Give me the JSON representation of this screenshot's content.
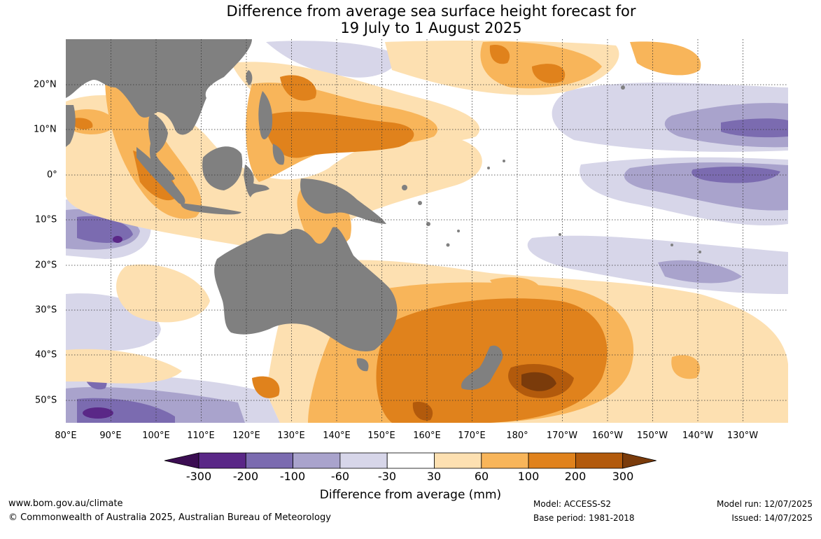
{
  "title_line1": "Difference from average sea surface height forecast for",
  "title_line2": "19 July to 1 August 2025",
  "lon_labels": [
    "80°E",
    "90°E",
    "100°E",
    "110°E",
    "120°E",
    "130°E",
    "140°E",
    "150°E",
    "160°E",
    "170°E",
    "180°",
    "170°W",
    "160°W",
    "150°W",
    "140°W",
    "130°W"
  ],
  "lat_labels": [
    "20°N",
    "10°N",
    "0°",
    "10°S",
    "20°S",
    "30°S",
    "40°S",
    "50°S"
  ],
  "colorbar": {
    "ticks": [
      "-300",
      "-200",
      "-100",
      "-60",
      "-30",
      "30",
      "60",
      "100",
      "200",
      "300"
    ],
    "colors": [
      "#3b0d52",
      "#5a2787",
      "#7b6bb0",
      "#a9a3cc",
      "#d7d6e9",
      "#ffffff",
      "#fde0b1",
      "#f8b55a",
      "#e0821c",
      "#b25a0c",
      "#7a3b0b"
    ],
    "title": "Difference from average (mm)"
  },
  "colors": {
    "land": "#808080",
    "ocean": "#ffffff",
    "grid": "#333333"
  },
  "footer": {
    "url": "www.bom.gov.au/climate",
    "copyright": "© Commonwealth of Australia 2025, Australian Bureau of Meteorology",
    "model": "Model: ACCESS-S2",
    "base_period": "Base period: 1981-2018",
    "model_run": "Model run: 12/07/2025",
    "issued": "Issued: 14/07/2025"
  }
}
